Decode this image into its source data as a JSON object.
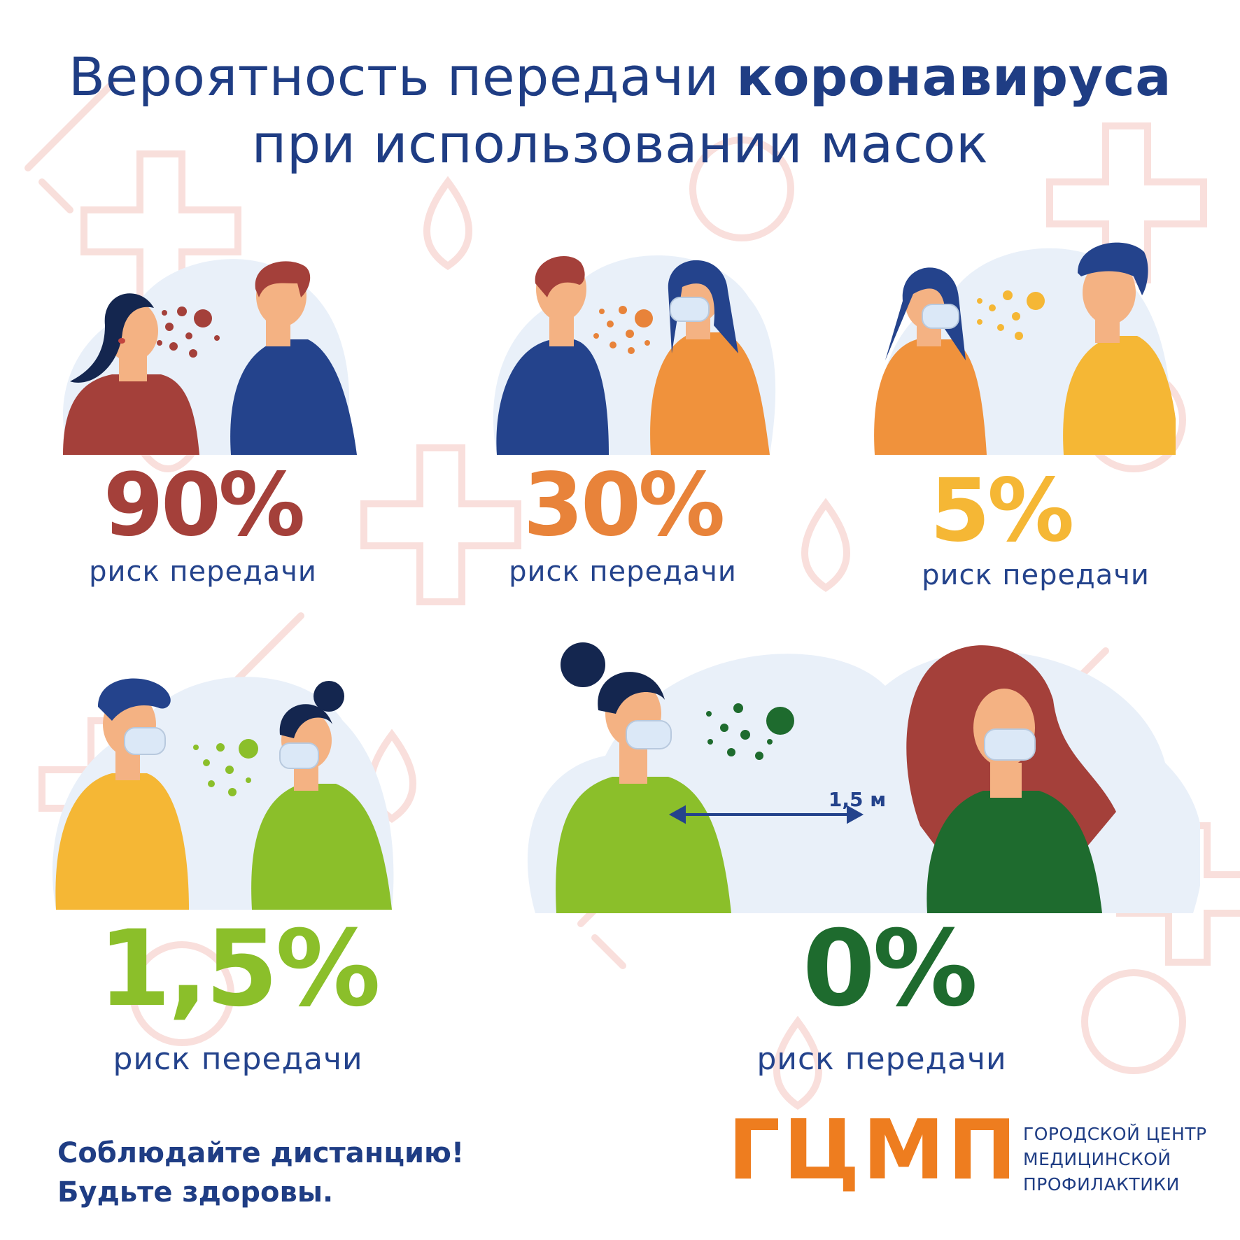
{
  "title": {
    "line1_regular": "Вероятность передачи ",
    "line1_bold": "коронавируса",
    "line2": "при использовании масок"
  },
  "cards": [
    {
      "percent": "90%",
      "risk": "риск передачи",
      "color": "#a4403a"
    },
    {
      "percent": "30%",
      "risk": "риск передачи",
      "color": "#e8833a"
    },
    {
      "percent": "5%",
      "risk": "риск передачи",
      "color": "#f5b735"
    },
    {
      "percent": "1,5%",
      "risk": "риск передачи",
      "color": "#8bbf2a"
    },
    {
      "percent": "0%",
      "risk": "риск передачи",
      "color": "#1e6b2e"
    }
  ],
  "distance": "1,5 м",
  "footer": {
    "line1_regular": "Соблюдайте ",
    "line1_bold": "дистанцию!",
    "line2": "Будьте здоровы."
  },
  "logo": {
    "abbr": "ГЦМП",
    "line1": "ГОРОДСКОЙ ЦЕНТР",
    "line2": "МЕДИЦИНСКОЙ",
    "line3": "ПРОФИЛАКТИКИ"
  },
  "colors": {
    "navy": "#1f3d84",
    "pattern": "#f6d3cf",
    "cloud": "#e9f0f9"
  }
}
